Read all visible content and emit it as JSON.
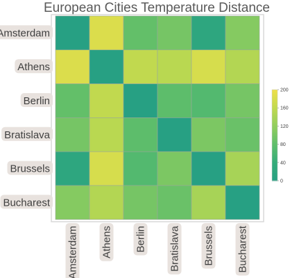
{
  "chart_data": {
    "type": "heatmap",
    "title": "European Cities Temperature Distance",
    "rows": [
      "Amsterdam",
      "Athens",
      "Berlin",
      "Bratislava",
      "Brussels",
      "Bucharest"
    ],
    "columns": [
      "Amsterdam",
      "Athens",
      "Berlin",
      "Bratislava",
      "Brussels",
      "Bucharest"
    ],
    "values": [
      [
        0,
        184,
        85,
        100,
        20,
        112
      ],
      [
        184,
        0,
        162,
        155,
        180,
        150
      ],
      [
        85,
        162,
        0,
        80,
        70,
        100
      ],
      [
        100,
        155,
        80,
        0,
        105,
        90
      ],
      [
        20,
        180,
        70,
        105,
        0,
        140
      ],
      [
        112,
        150,
        100,
        90,
        140,
        0
      ]
    ],
    "colorbar": {
      "min": 0,
      "max": 200,
      "ticks": [
        "0",
        "40",
        "80",
        "120",
        "160",
        "200"
      ],
      "colors": [
        "#27a083",
        "#34ac7a",
        "#5dbd6b",
        "#8fcd5e",
        "#bfd94f",
        "#ede04a"
      ]
    },
    "legend_placement": "right",
    "grid": false
  }
}
